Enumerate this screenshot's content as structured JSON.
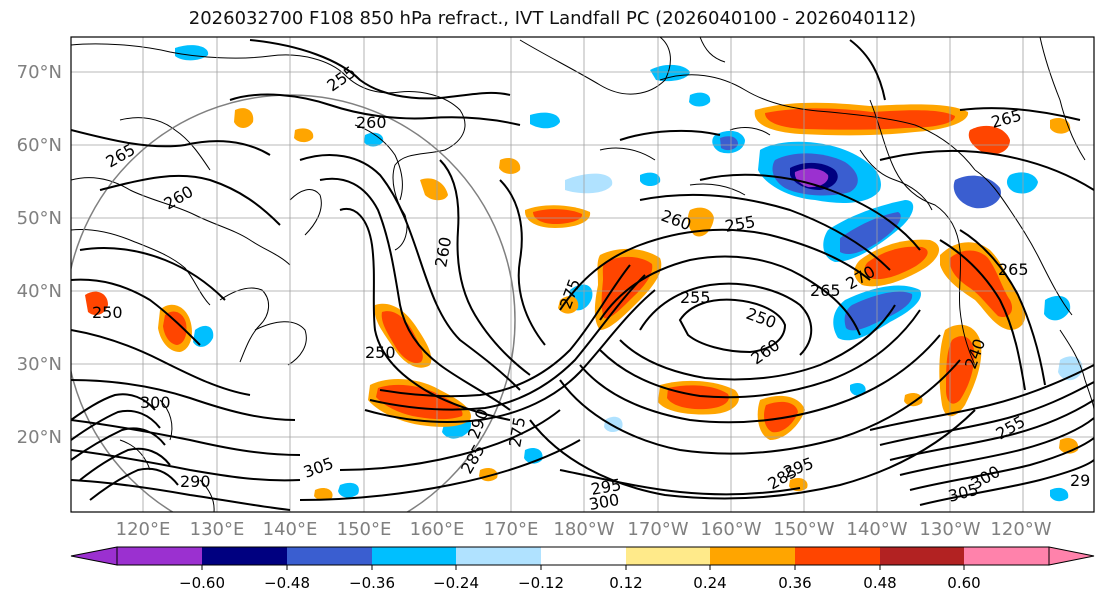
{
  "title": "2026032700 F108 850 hPa refract., IVT Landfall PC (2026040100 - 2026040112)",
  "lat_labels": [
    "70°N",
    "60°N",
    "50°N",
    "40°N",
    "30°N",
    "20°N"
  ],
  "lat_values": [
    70,
    60,
    50,
    40,
    30,
    20
  ],
  "lon_labels": [
    "120°E",
    "130°E",
    "140°E",
    "150°E",
    "160°E",
    "170°E",
    "180°W",
    "170°W",
    "160°W",
    "150°W",
    "140°W",
    "130°W",
    "120°W"
  ],
  "colorbar": {
    "colors": [
      "#9b30d0",
      "#000080",
      "#3a5ed0",
      "#00bfff",
      "#b0e2ff",
      "#ffffff",
      "#ffea8a",
      "#ffa500",
      "#ff4500",
      "#b22222",
      "#ff82ab"
    ],
    "tick_labels": [
      "−0.60",
      "−0.48",
      "−0.36",
      "−0.24",
      "−0.12",
      "0.12",
      "0.24",
      "0.36",
      "0.48",
      "0.60"
    ]
  },
  "contour_labels": [
    "255",
    "260",
    "265",
    "260",
    "265",
    "260",
    "255",
    "250",
    "250",
    "260",
    "260",
    "255",
    "265",
    "270",
    "275",
    "285",
    "290",
    "300",
    "305",
    "295",
    "300",
    "285",
    "275",
    "265",
    "240",
    "250",
    "290",
    "295",
    "305",
    "300",
    "255",
    "29"
  ]
}
